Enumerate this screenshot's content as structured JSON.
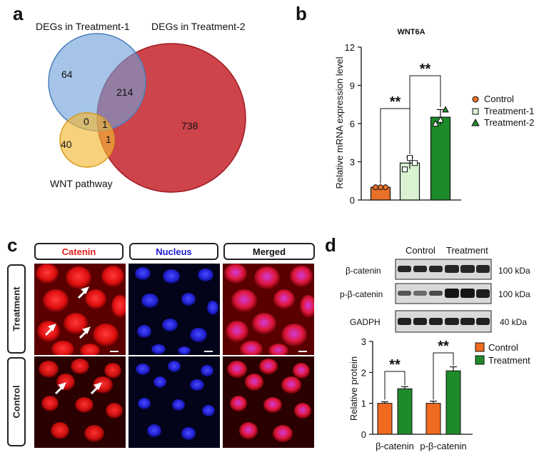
{
  "panel_a": {
    "letter": "a",
    "set1_label": "DEGs in Treatment-1",
    "set2_label": "DEGs in Treatment-2",
    "set3_label": "WNT pathway",
    "counts": {
      "only_t1": "64",
      "t1_t2": "214",
      "only_t2": "738",
      "t1_wnt": "0",
      "all_three": "1",
      "t2_wnt": "1",
      "only_wnt": "40"
    },
    "colors": {
      "set1": "#6f9fd8",
      "set2": "#c9343b",
      "set3": "#f2b835"
    }
  },
  "panel_b": {
    "letter": "b",
    "chart_data": {
      "type": "bar",
      "title": "WNT6A",
      "xlabel": "",
      "ylabel": "Relative mRNA expression level",
      "ylim": [
        0,
        12
      ],
      "yticks": [
        "0",
        "3",
        "6",
        "9",
        "12"
      ],
      "categories": [
        "Control",
        "Treatment-1",
        "Treatment-2"
      ],
      "values": [
        1.0,
        2.9,
        6.5
      ],
      "errors": [
        0.08,
        0.45,
        0.6
      ],
      "points": [
        [
          1.0,
          1.0,
          1.0
        ],
        [
          2.4,
          3.3,
          2.9
        ],
        [
          6.0,
          6.3,
          7.1
        ]
      ],
      "colors": [
        "#e8712a",
        "#d9f2d2",
        "#1d8a2a"
      ],
      "legend": [
        "Control",
        "Treatment-1",
        "Treatment-2"
      ],
      "legend_position": "right",
      "significance": [
        "**",
        "**"
      ]
    }
  },
  "panel_c": {
    "letter": "c",
    "columns": [
      "Catenin",
      "Nucleus",
      "Merged"
    ],
    "column_colors": [
      "#e11b1b",
      "#1a1acc",
      "#111111"
    ],
    "rows": [
      "Treatment",
      "Control"
    ]
  },
  "panel_d": {
    "letter": "d",
    "blot_groups": [
      "Control",
      "Treatment"
    ],
    "blot_rows": [
      {
        "label": "β-catenin",
        "kda": "100 kDa"
      },
      {
        "label": "p-β-catenin",
        "kda": "100 kDa"
      },
      {
        "label": "GADPH",
        "kda": "40 kDa"
      }
    ],
    "chart_data": {
      "type": "bar",
      "title": "",
      "xlabel": "",
      "ylabel": "Relative protein",
      "ylim": [
        0,
        3
      ],
      "yticks": [
        "0",
        "1",
        "2",
        "3"
      ],
      "categories": [
        "β-catenin",
        "p-β-catenin"
      ],
      "series": [
        {
          "name": "Control",
          "values": [
            1.0,
            1.0
          ],
          "errors": [
            0.05,
            0.07
          ]
        },
        {
          "name": "Treatment",
          "values": [
            1.47,
            2.05
          ],
          "errors": [
            0.07,
            0.13
          ]
        }
      ],
      "colors": [
        "#f06a1f",
        "#1f8a2a"
      ],
      "legend_position": "top-right",
      "significance": [
        "**",
        "**"
      ]
    }
  }
}
